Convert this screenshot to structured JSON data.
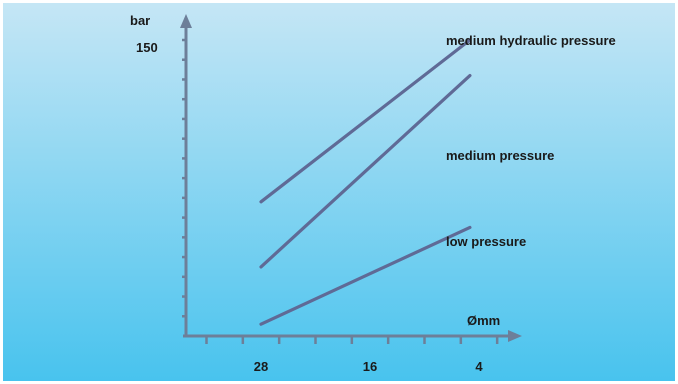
{
  "chart_data": {
    "type": "line",
    "ylabel": "bar",
    "xlabel": "Ømm",
    "y_tick_label": "150",
    "y_tick_value": 150,
    "ylim": [
      0,
      170
    ],
    "x_tick_labels": [
      "28",
      "16",
      "4"
    ],
    "x_direction": "decreasing",
    "xlim": [
      35,
      -1
    ],
    "grid": false,
    "legend": "labels at line ends",
    "series": [
      {
        "name": "medium hydraulic pressure",
        "x": [
          28,
          5
        ],
        "y": [
          68,
          150
        ]
      },
      {
        "name": "medium pressure",
        "x": [
          28,
          5
        ],
        "y": [
          35,
          132
        ]
      },
      {
        "name": "low pressure",
        "x": [
          28,
          5
        ],
        "y": [
          6,
          55
        ]
      }
    ]
  },
  "colors": {
    "background_top": "#c5e6f5",
    "background_bottom": "#48c3ee",
    "axis": "#6d7f99",
    "line": "#5f6a96",
    "text": "#1a1a1a"
  }
}
